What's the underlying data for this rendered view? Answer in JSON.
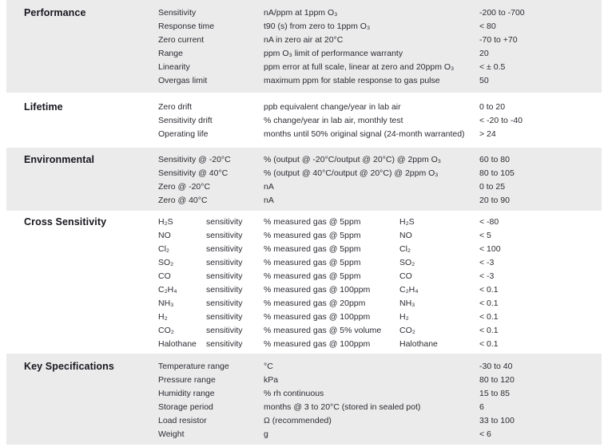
{
  "page": {
    "background_color": "#ffffff",
    "section_shaded_color": "#ebebeb",
    "title_color": "#17171f",
    "text_color": "#2b2b33"
  },
  "sections": [
    {
      "title": "Performance",
      "shaded": true,
      "cross": false,
      "rows": [
        {
          "param": "Sensitivity",
          "desc": "nA/ppm at 1ppm O₃",
          "value": "-200 to -700"
        },
        {
          "param": "Response time",
          "desc": "t90 (s) from zero to 1ppm O₃",
          "value": "< 80"
        },
        {
          "param": "Zero current",
          "desc": "nA in zero air at 20°C",
          "value": "-70 to +70"
        },
        {
          "param": "Range",
          "desc": "ppm O₃ limit of performance warranty",
          "value": "20"
        },
        {
          "param": "Linearity",
          "desc": "ppm error at full scale, linear at zero and 20ppm O₃",
          "value": "< ± 0.5"
        },
        {
          "param": "Overgas limit",
          "desc": "maximum ppm for stable response to gas pulse",
          "value": "50"
        }
      ]
    },
    {
      "title": "Lifetime",
      "shaded": false,
      "cross": false,
      "rows": [
        {
          "param": "Zero drift",
          "desc": "ppb equivalent change/year in lab air",
          "value": "0 to 20"
        },
        {
          "param": "Sensitivity drift",
          "desc": "% change/year in lab air, monthly test",
          "value": "< -20 to -40"
        },
        {
          "param": "Operating life",
          "desc": "months until 50% original signal (24-month warranted)",
          "value": "> 24"
        }
      ]
    },
    {
      "title": "Environmental",
      "shaded": true,
      "cross": false,
      "rows": [
        {
          "param": "Sensitivity @ -20°C",
          "desc": "% (output @ -20°C/output @ 20°C) @ 2ppm O₃",
          "value": "60 to 80"
        },
        {
          "param": "Sensitivity @ 40°C",
          "desc": "% (output @ 40°C/output @ 20°C) @ 2ppm O₃",
          "value": "80 to 105"
        },
        {
          "param": "Zero @ -20°C",
          "desc": "nA",
          "value": "0 to 25"
        },
        {
          "param": "Zero @ 40°C",
          "desc": "nA",
          "value": "20 to 90"
        }
      ]
    },
    {
      "title": "Cross Sensitivity",
      "shaded": false,
      "cross": true,
      "rows": [
        {
          "gas": "H₂S",
          "label": "sensitivity",
          "desc": "% measured gas @ 5ppm",
          "gas2": "H₂S",
          "value": "< -80"
        },
        {
          "gas": "NO",
          "label": "sensitivity",
          "desc": "% measured gas @ 5ppm",
          "gas2": "NO",
          "value": "< 5"
        },
        {
          "gas": "Cl₂",
          "label": "sensitivity",
          "desc": "% measured gas @ 5ppm",
          "gas2": "Cl₂",
          "value": "< 100"
        },
        {
          "gas": "SO₂",
          "label": "sensitivity",
          "desc": "% measured gas @ 5ppm",
          "gas2": "SO₂",
          "value": "< -3"
        },
        {
          "gas": "CO",
          "label": "sensitivity",
          "desc": "% measured gas @ 5ppm",
          "gas2": "CO",
          "value": "< -3"
        },
        {
          "gas": "C₂H₄",
          "label": "sensitivity",
          "desc": "% measured gas @ 100ppm",
          "gas2": "C₂H₄",
          "value": "< 0.1"
        },
        {
          "gas": "NH₃",
          "label": "sensitivity",
          "desc": "% measured gas @ 20ppm",
          "gas2": "NH₃",
          "value": "< 0.1"
        },
        {
          "gas": "H₂",
          "label": "sensitivity",
          "desc": "% measured gas @ 100ppm",
          "gas2": "H₂",
          "value": "< 0.1"
        },
        {
          "gas": "CO₂",
          "label": "sensitivity",
          "desc": "% measured gas @ 5% volume",
          "gas2": "CO₂",
          "value": "< 0.1"
        },
        {
          "gas": "Halothane",
          "label": "sensitivity",
          "desc": "% measured gas @ 100ppm",
          "gas2": "Halothane",
          "value": "< 0.1"
        }
      ]
    },
    {
      "title": "Key Specifications",
      "shaded": true,
      "cross": false,
      "rows": [
        {
          "param": "Temperature range",
          "desc": "°C",
          "value": "-30 to 40"
        },
        {
          "param": "Pressure range",
          "desc": "kPa",
          "value": "80 to 120"
        },
        {
          "param": "Humidity range",
          "desc": "% rh continuous",
          "value": "15 to 85"
        },
        {
          "param": "Storage period",
          "desc": "months @ 3 to 20°C (stored in sealed pot)",
          "value": "6"
        },
        {
          "param": "Load resistor",
          "desc": "Ω (recommended)",
          "value": "33 to 100"
        },
        {
          "param": "Weight",
          "desc": "g",
          "value": "< 6"
        }
      ]
    }
  ]
}
